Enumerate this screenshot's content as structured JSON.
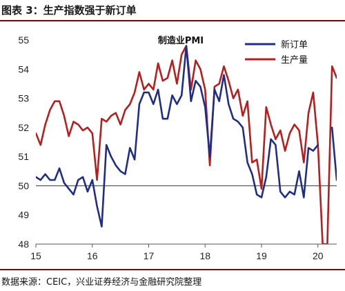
{
  "header": {
    "title": "图表 3：生产指数强于新订单"
  },
  "footer": {
    "source": "数据来源：CEIC，兴业证券经济与金融研究院整理"
  },
  "chart_data": {
    "type": "line",
    "title": "制造业PMI",
    "xlabel": "",
    "ylabel": "",
    "ylim": [
      48,
      55
    ],
    "yticks": [
      "48",
      "49",
      "50",
      "51",
      "52",
      "53",
      "54",
      "55"
    ],
    "xticks": [
      {
        "label": "15",
        "month": 0
      },
      {
        "label": "16",
        "month": 12
      },
      {
        "label": "17",
        "month": 24
      },
      {
        "label": "18",
        "month": 36
      },
      {
        "label": "19",
        "month": 48
      },
      {
        "label": "20",
        "month": 60
      }
    ],
    "x_unit": "months since 2015-01",
    "reference_line": 50,
    "legend_position": "top-right",
    "series": [
      {
        "name": "新订单",
        "color": "#1f2d86",
        "x": [
          0,
          1,
          2,
          3,
          4,
          5,
          6,
          7,
          8,
          9,
          10,
          11,
          12,
          13,
          14,
          15,
          16,
          17,
          18,
          19,
          20,
          21,
          22,
          23,
          24,
          25,
          26,
          27,
          28,
          29,
          30,
          31,
          32,
          33,
          34,
          35,
          36,
          37,
          38,
          39,
          40,
          41,
          42,
          43,
          44,
          45,
          46,
          47,
          48,
          49,
          50,
          51,
          52,
          53,
          54,
          55,
          56,
          57,
          58,
          59,
          60,
          61,
          62,
          63,
          64
        ],
        "values": [
          50.3,
          50.2,
          50.4,
          50.2,
          50.2,
          50.6,
          50.1,
          49.9,
          49.7,
          50.2,
          50.3,
          49.8,
          50.2,
          49.3,
          48.6,
          51.4,
          51.0,
          50.7,
          50.5,
          50.4,
          51.3,
          50.9,
          52.8,
          53.2,
          53.2,
          52.8,
          53.3,
          52.3,
          52.3,
          53.1,
          52.8,
          53.1,
          54.8,
          52.9,
          53.6,
          53.4,
          52.7,
          51.0,
          53.3,
          52.9,
          53.8,
          52.8,
          52.3,
          52.2,
          52.0,
          50.8,
          50.4,
          49.7,
          49.6,
          50.3,
          51.6,
          51.4,
          49.8,
          49.6,
          49.8,
          49.7,
          50.5,
          49.6,
          51.3,
          51.2,
          51.4,
          null,
          null,
          52.0,
          50.2
        ]
      },
      {
        "name": "生产量",
        "color": "#b81d1d",
        "x": [
          0,
          1,
          2,
          3,
          4,
          5,
          6,
          7,
          8,
          9,
          10,
          11,
          12,
          13,
          14,
          15,
          16,
          17,
          18,
          19,
          20,
          21,
          22,
          23,
          24,
          25,
          26,
          27,
          28,
          29,
          30,
          31,
          32,
          33,
          34,
          35,
          36,
          37,
          38,
          39,
          40,
          41,
          42,
          43,
          44,
          45,
          46,
          47,
          48,
          49,
          50,
          51,
          52,
          53,
          54,
          55,
          56,
          57,
          58,
          59,
          60,
          61,
          62,
          63,
          64
        ],
        "values": [
          51.8,
          51.4,
          52.1,
          52.6,
          52.9,
          52.9,
          52.4,
          51.7,
          52.2,
          52.1,
          51.9,
          52.0,
          51.8,
          50.2,
          52.3,
          52.2,
          52.4,
          52.5,
          52.1,
          52.6,
          52.8,
          53.2,
          53.9,
          53.3,
          53.5,
          53.3,
          54.2,
          53.6,
          53.7,
          54.3,
          53.5,
          54.5,
          54.8,
          53.3,
          54.3,
          54.0,
          53.3,
          50.7,
          53.4,
          53.5,
          54.1,
          53.6,
          53.0,
          53.3,
          52.4,
          52.9,
          50.8,
          50.9,
          49.9,
          52.7,
          52.1,
          51.6,
          51.9,
          51.2,
          51.8,
          52.1,
          51.9,
          50.8,
          52.5,
          53.2,
          51.4,
          48.0,
          48.0,
          54.1,
          53.7
        ]
      }
    ]
  }
}
